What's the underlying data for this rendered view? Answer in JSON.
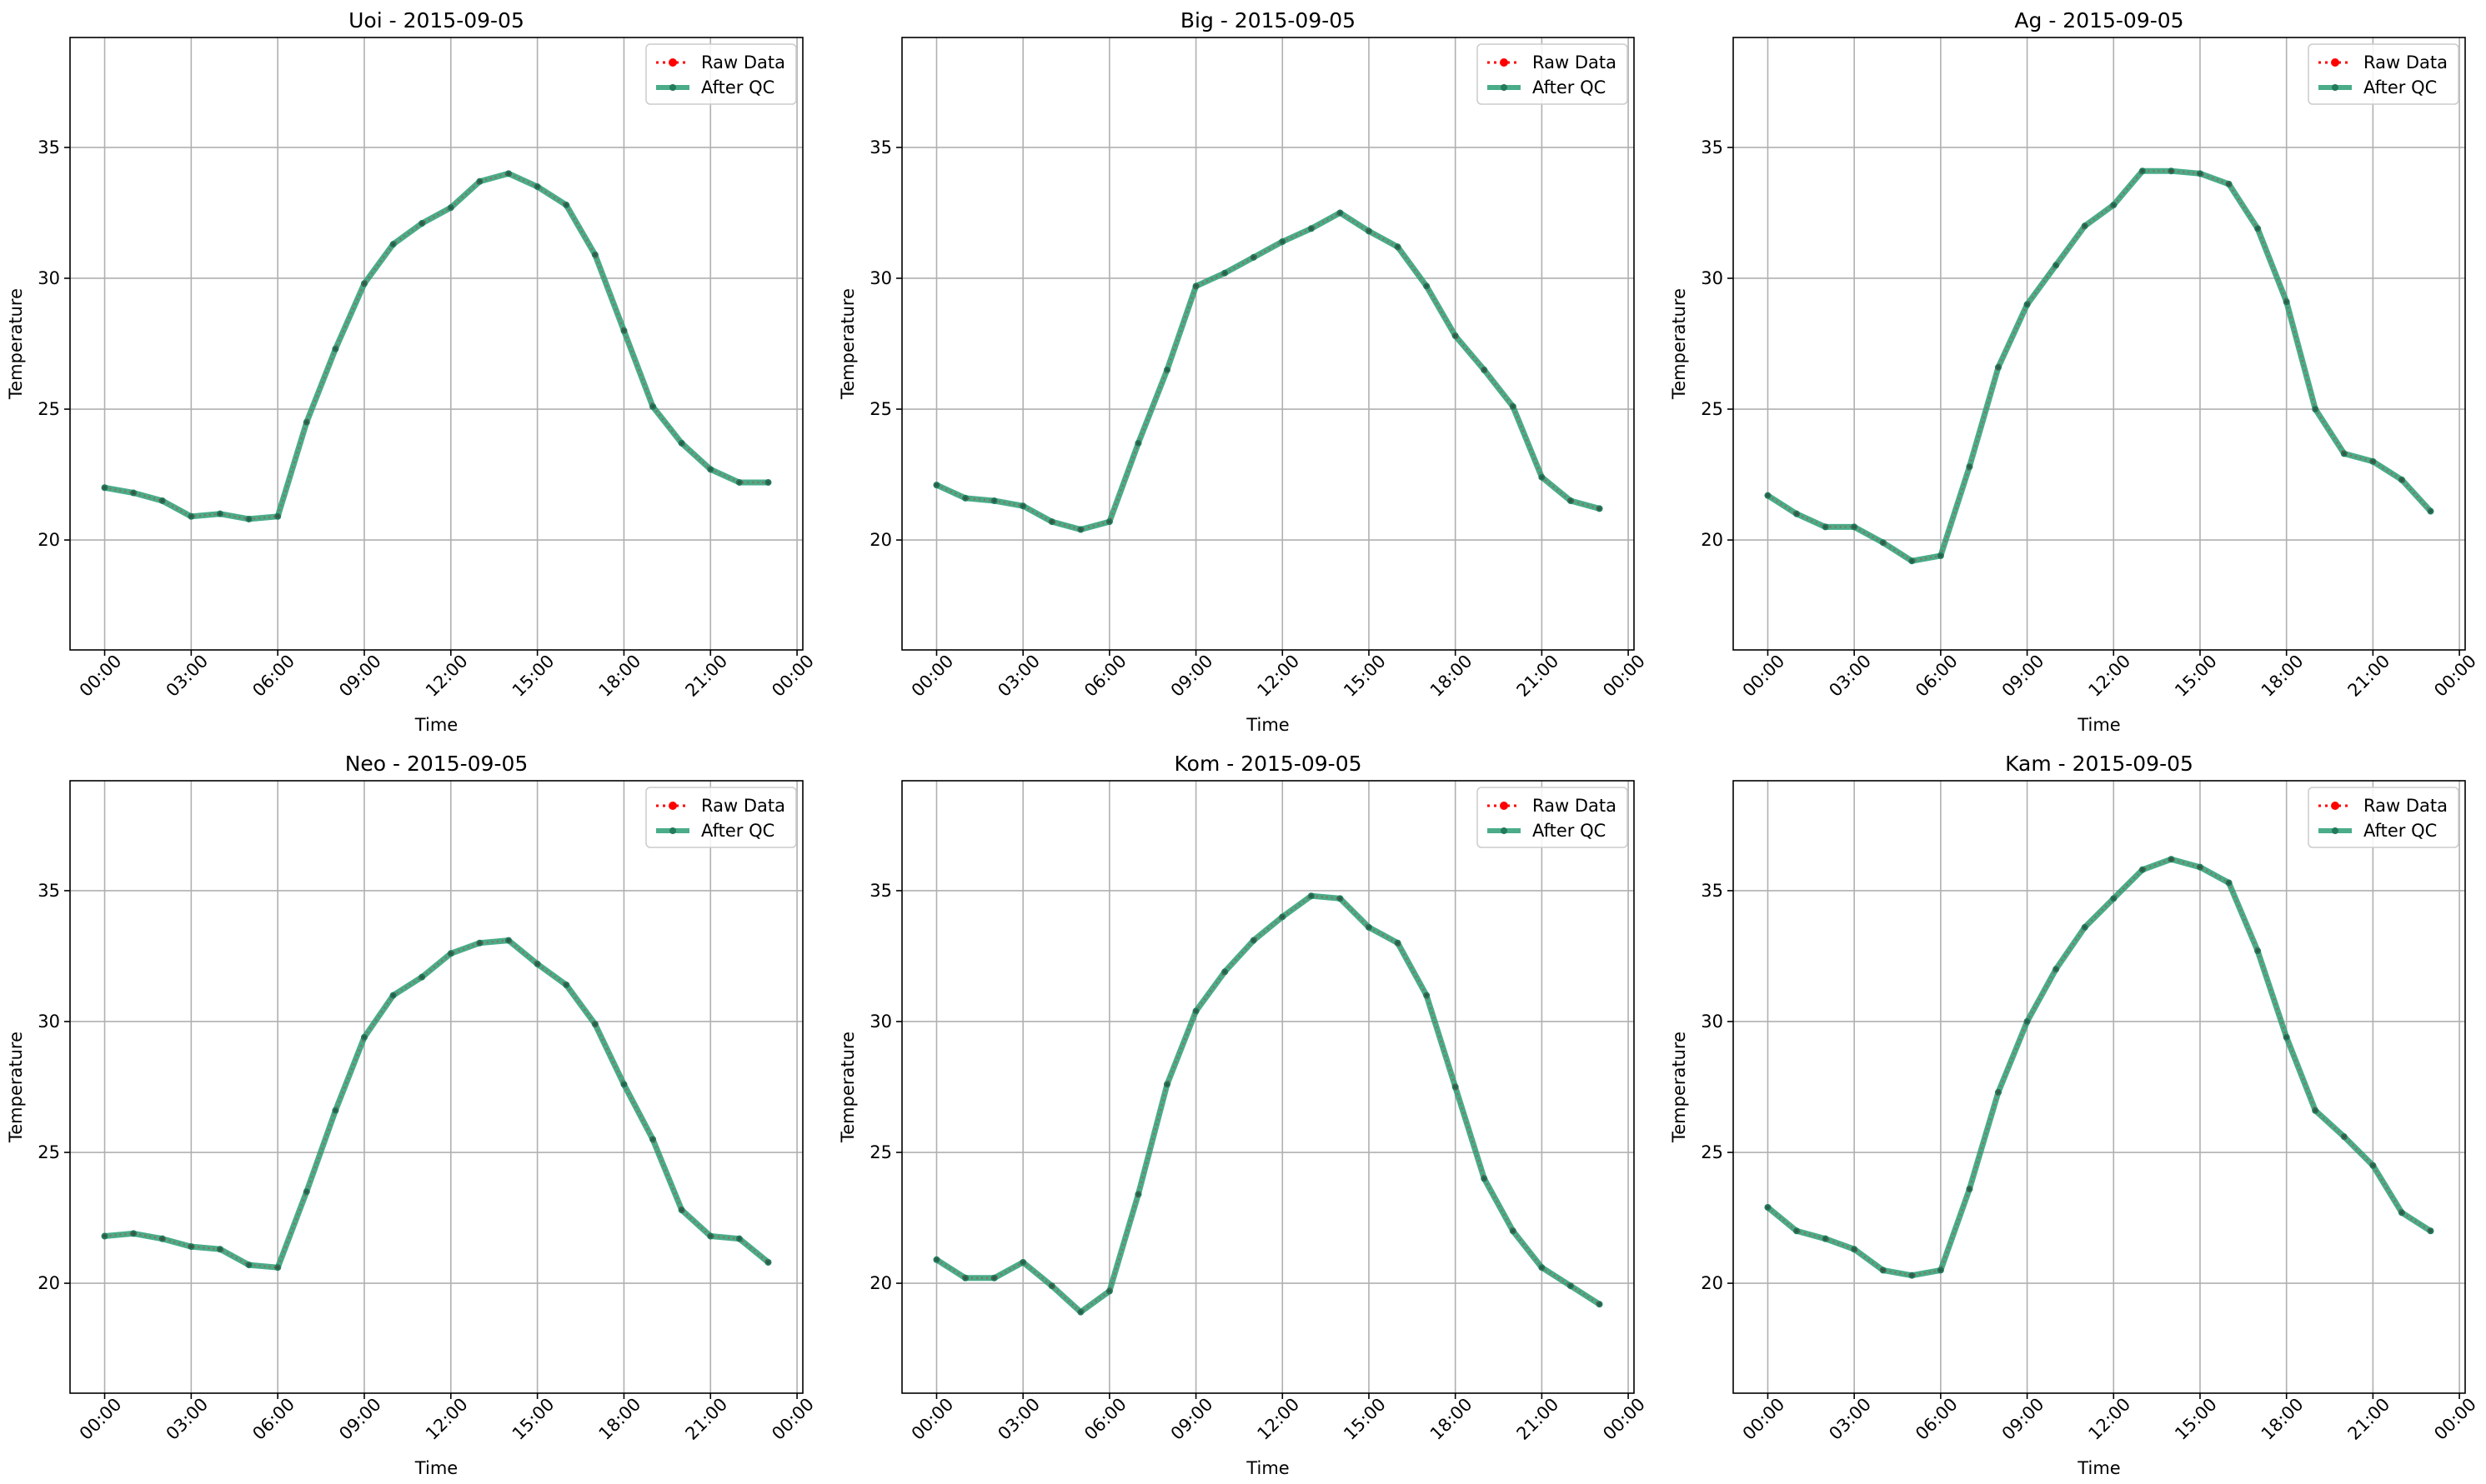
{
  "chart_data": [
    {
      "type": "line",
      "title": "Uoi - 2015-09-05",
      "xlabel": "Time",
      "ylabel": "Temperature",
      "x_ticks": [
        "00:00",
        "03:00",
        "06:00",
        "09:00",
        "12:00",
        "15:00",
        "18:00",
        "21:00",
        "00:00"
      ],
      "y_ticks": [
        "20",
        "25",
        "30",
        "35"
      ],
      "ylim": [
        15.8,
        39.2
      ],
      "xlim": [
        -1.2,
        24.2
      ],
      "grid": true,
      "legend": {
        "position": "upper-right",
        "entries": [
          "Raw Data",
          "After QC"
        ]
      },
      "x": [
        0,
        1,
        2,
        3,
        4,
        5,
        6,
        7,
        8,
        9,
        10,
        11,
        12,
        13,
        14,
        15,
        16,
        17,
        18,
        19,
        20,
        21,
        22,
        23
      ],
      "series": [
        {
          "name": "Raw Data",
          "style": "dotted",
          "color": "#ff0000",
          "values": [
            22.0,
            21.8,
            21.5,
            20.9,
            21.0,
            20.8,
            20.9,
            24.5,
            27.3,
            29.8,
            31.3,
            32.1,
            32.7,
            33.7,
            34.0,
            33.5,
            32.8,
            30.9,
            28.0,
            25.1,
            23.7,
            22.7,
            22.2,
            22.2
          ]
        },
        {
          "name": "After QC",
          "style": "solid",
          "color": "#2a9d74",
          "values": [
            22.0,
            21.8,
            21.5,
            20.9,
            21.0,
            20.8,
            20.9,
            24.5,
            27.3,
            29.8,
            31.3,
            32.1,
            32.7,
            33.7,
            34.0,
            33.5,
            32.8,
            30.9,
            28.0,
            25.1,
            23.7,
            22.7,
            22.2,
            22.2
          ]
        }
      ]
    },
    {
      "type": "line",
      "title": "Big - 2015-09-05",
      "xlabel": "Time",
      "ylabel": "Temperature",
      "x_ticks": [
        "00:00",
        "03:00",
        "06:00",
        "09:00",
        "12:00",
        "15:00",
        "18:00",
        "21:00",
        "00:00"
      ],
      "y_ticks": [
        "20",
        "25",
        "30",
        "35"
      ],
      "ylim": [
        15.8,
        39.2
      ],
      "xlim": [
        -1.2,
        24.2
      ],
      "grid": true,
      "legend": {
        "position": "upper-right",
        "entries": [
          "Raw Data",
          "After QC"
        ]
      },
      "x": [
        0,
        1,
        2,
        3,
        4,
        5,
        6,
        7,
        8,
        9,
        10,
        11,
        12,
        13,
        14,
        15,
        16,
        17,
        18,
        19,
        20,
        21,
        22,
        23
      ],
      "series": [
        {
          "name": "Raw Data",
          "style": "dotted",
          "color": "#ff0000",
          "values": [
            22.1,
            21.6,
            21.5,
            21.3,
            20.7,
            20.4,
            20.7,
            23.7,
            26.5,
            29.7,
            30.2,
            30.8,
            31.4,
            31.9,
            32.5,
            31.8,
            31.2,
            29.7,
            27.8,
            26.5,
            25.1,
            22.4,
            21.5,
            21.2
          ]
        },
        {
          "name": "After QC",
          "style": "solid",
          "color": "#2a9d74",
          "values": [
            22.1,
            21.6,
            21.5,
            21.3,
            20.7,
            20.4,
            20.7,
            23.7,
            26.5,
            29.7,
            30.2,
            30.8,
            31.4,
            31.9,
            32.5,
            31.8,
            31.2,
            29.7,
            27.8,
            26.5,
            25.1,
            22.4,
            21.5,
            21.2
          ]
        }
      ]
    },
    {
      "type": "line",
      "title": "Ag - 2015-09-05",
      "xlabel": "Time",
      "ylabel": "Temperature",
      "x_ticks": [
        "00:00",
        "03:00",
        "06:00",
        "09:00",
        "12:00",
        "15:00",
        "18:00",
        "21:00",
        "00:00"
      ],
      "y_ticks": [
        "20",
        "25",
        "30",
        "35"
      ],
      "ylim": [
        15.8,
        39.2
      ],
      "xlim": [
        -1.2,
        24.2
      ],
      "grid": true,
      "legend": {
        "position": "upper-right",
        "entries": [
          "Raw Data",
          "After QC"
        ]
      },
      "x": [
        0,
        1,
        2,
        3,
        4,
        5,
        6,
        7,
        8,
        9,
        10,
        11,
        12,
        13,
        14,
        15,
        16,
        17,
        18,
        19,
        20,
        21,
        22,
        23
      ],
      "series": [
        {
          "name": "Raw Data",
          "style": "dotted",
          "color": "#ff0000",
          "values": [
            21.7,
            21.0,
            20.5,
            20.5,
            19.9,
            19.2,
            19.4,
            22.8,
            26.6,
            29.0,
            30.5,
            32.0,
            32.8,
            34.1,
            34.1,
            34.0,
            33.6,
            31.9,
            29.1,
            25.0,
            23.3,
            23.0,
            22.3,
            21.1
          ]
        },
        {
          "name": "After QC",
          "style": "solid",
          "color": "#2a9d74",
          "values": [
            21.7,
            21.0,
            20.5,
            20.5,
            19.9,
            19.2,
            19.4,
            22.8,
            26.6,
            29.0,
            30.5,
            32.0,
            32.8,
            34.1,
            34.1,
            34.0,
            33.6,
            31.9,
            29.1,
            25.0,
            23.3,
            23.0,
            22.3,
            21.1
          ]
        }
      ]
    },
    {
      "type": "line",
      "title": "Neo - 2015-09-05",
      "xlabel": "Time",
      "ylabel": "Temperature",
      "x_ticks": [
        "00:00",
        "03:00",
        "06:00",
        "09:00",
        "12:00",
        "15:00",
        "18:00",
        "21:00",
        "00:00"
      ],
      "y_ticks": [
        "20",
        "25",
        "30",
        "35"
      ],
      "ylim": [
        15.8,
        39.2
      ],
      "xlim": [
        -1.2,
        24.2
      ],
      "grid": true,
      "legend": {
        "position": "upper-right",
        "entries": [
          "Raw Data",
          "After QC"
        ]
      },
      "x": [
        0,
        1,
        2,
        3,
        4,
        5,
        6,
        7,
        8,
        9,
        10,
        11,
        12,
        13,
        14,
        15,
        16,
        17,
        18,
        19,
        20,
        21,
        22,
        23
      ],
      "series": [
        {
          "name": "Raw Data",
          "style": "dotted",
          "color": "#ff0000",
          "values": [
            21.8,
            21.9,
            21.7,
            21.4,
            21.3,
            20.7,
            20.6,
            23.5,
            26.6,
            29.4,
            31.0,
            31.7,
            32.6,
            33.0,
            33.1,
            32.2,
            31.4,
            29.9,
            27.6,
            25.5,
            22.8,
            21.8,
            21.7,
            20.8
          ]
        },
        {
          "name": "After QC",
          "style": "solid",
          "color": "#2a9d74",
          "values": [
            21.8,
            21.9,
            21.7,
            21.4,
            21.3,
            20.7,
            20.6,
            23.5,
            26.6,
            29.4,
            31.0,
            31.7,
            32.6,
            33.0,
            33.1,
            32.2,
            31.4,
            29.9,
            27.6,
            25.5,
            22.8,
            21.8,
            21.7,
            20.8
          ]
        }
      ]
    },
    {
      "type": "line",
      "title": "Kom - 2015-09-05",
      "xlabel": "Time",
      "ylabel": "Temperature",
      "x_ticks": [
        "00:00",
        "03:00",
        "06:00",
        "09:00",
        "12:00",
        "15:00",
        "18:00",
        "21:00",
        "00:00"
      ],
      "y_ticks": [
        "20",
        "25",
        "30",
        "35"
      ],
      "ylim": [
        15.8,
        39.2
      ],
      "xlim": [
        -1.2,
        24.2
      ],
      "grid": true,
      "legend": {
        "position": "upper-right",
        "entries": [
          "Raw Data",
          "After QC"
        ]
      },
      "x": [
        0,
        1,
        2,
        3,
        4,
        5,
        6,
        7,
        8,
        9,
        10,
        11,
        12,
        13,
        14,
        15,
        16,
        17,
        18,
        19,
        20,
        21,
        22,
        23
      ],
      "series": [
        {
          "name": "Raw Data",
          "style": "dotted",
          "color": "#ff0000",
          "values": [
            20.9,
            20.2,
            20.2,
            20.8,
            19.9,
            18.9,
            19.7,
            23.4,
            27.6,
            30.4,
            31.9,
            33.1,
            34.0,
            34.8,
            34.7,
            33.6,
            33.0,
            31.0,
            27.5,
            24.0,
            22.0,
            20.6,
            19.9,
            19.2
          ]
        },
        {
          "name": "After QC",
          "style": "solid",
          "color": "#2a9d74",
          "values": [
            20.9,
            20.2,
            20.2,
            20.8,
            19.9,
            18.9,
            19.7,
            23.4,
            27.6,
            30.4,
            31.9,
            33.1,
            34.0,
            34.8,
            34.7,
            33.6,
            33.0,
            31.0,
            27.5,
            24.0,
            22.0,
            20.6,
            19.9,
            19.2
          ]
        }
      ]
    },
    {
      "type": "line",
      "title": "Kam - 2015-09-05",
      "xlabel": "Time",
      "ylabel": "Temperature",
      "x_ticks": [
        "00:00",
        "03:00",
        "06:00",
        "09:00",
        "12:00",
        "15:00",
        "18:00",
        "21:00",
        "00:00"
      ],
      "y_ticks": [
        "20",
        "25",
        "30",
        "35"
      ],
      "ylim": [
        15.8,
        39.2
      ],
      "xlim": [
        -1.2,
        24.2
      ],
      "grid": true,
      "legend": {
        "position": "upper-right",
        "entries": [
          "Raw Data",
          "After QC"
        ]
      },
      "x": [
        0,
        1,
        2,
        3,
        4,
        5,
        6,
        7,
        8,
        9,
        10,
        11,
        12,
        13,
        14,
        15,
        16,
        17,
        18,
        19,
        20,
        21,
        22,
        23
      ],
      "series": [
        {
          "name": "Raw Data",
          "style": "dotted",
          "color": "#ff0000",
          "values": [
            22.9,
            22.0,
            21.7,
            21.3,
            20.5,
            20.3,
            20.5,
            23.6,
            27.3,
            30.0,
            32.0,
            33.6,
            34.7,
            35.8,
            36.2,
            35.9,
            35.3,
            32.7,
            29.4,
            26.6,
            25.6,
            24.5,
            22.7,
            22.0
          ]
        },
        {
          "name": "After QC",
          "style": "solid",
          "color": "#2a9d74",
          "values": [
            22.9,
            22.0,
            21.7,
            21.3,
            20.5,
            20.3,
            20.5,
            23.6,
            27.3,
            30.0,
            32.0,
            33.6,
            34.7,
            35.8,
            36.2,
            35.9,
            35.3,
            32.7,
            29.4,
            26.6,
            25.6,
            24.5,
            22.7,
            22.0
          ]
        }
      ]
    }
  ]
}
